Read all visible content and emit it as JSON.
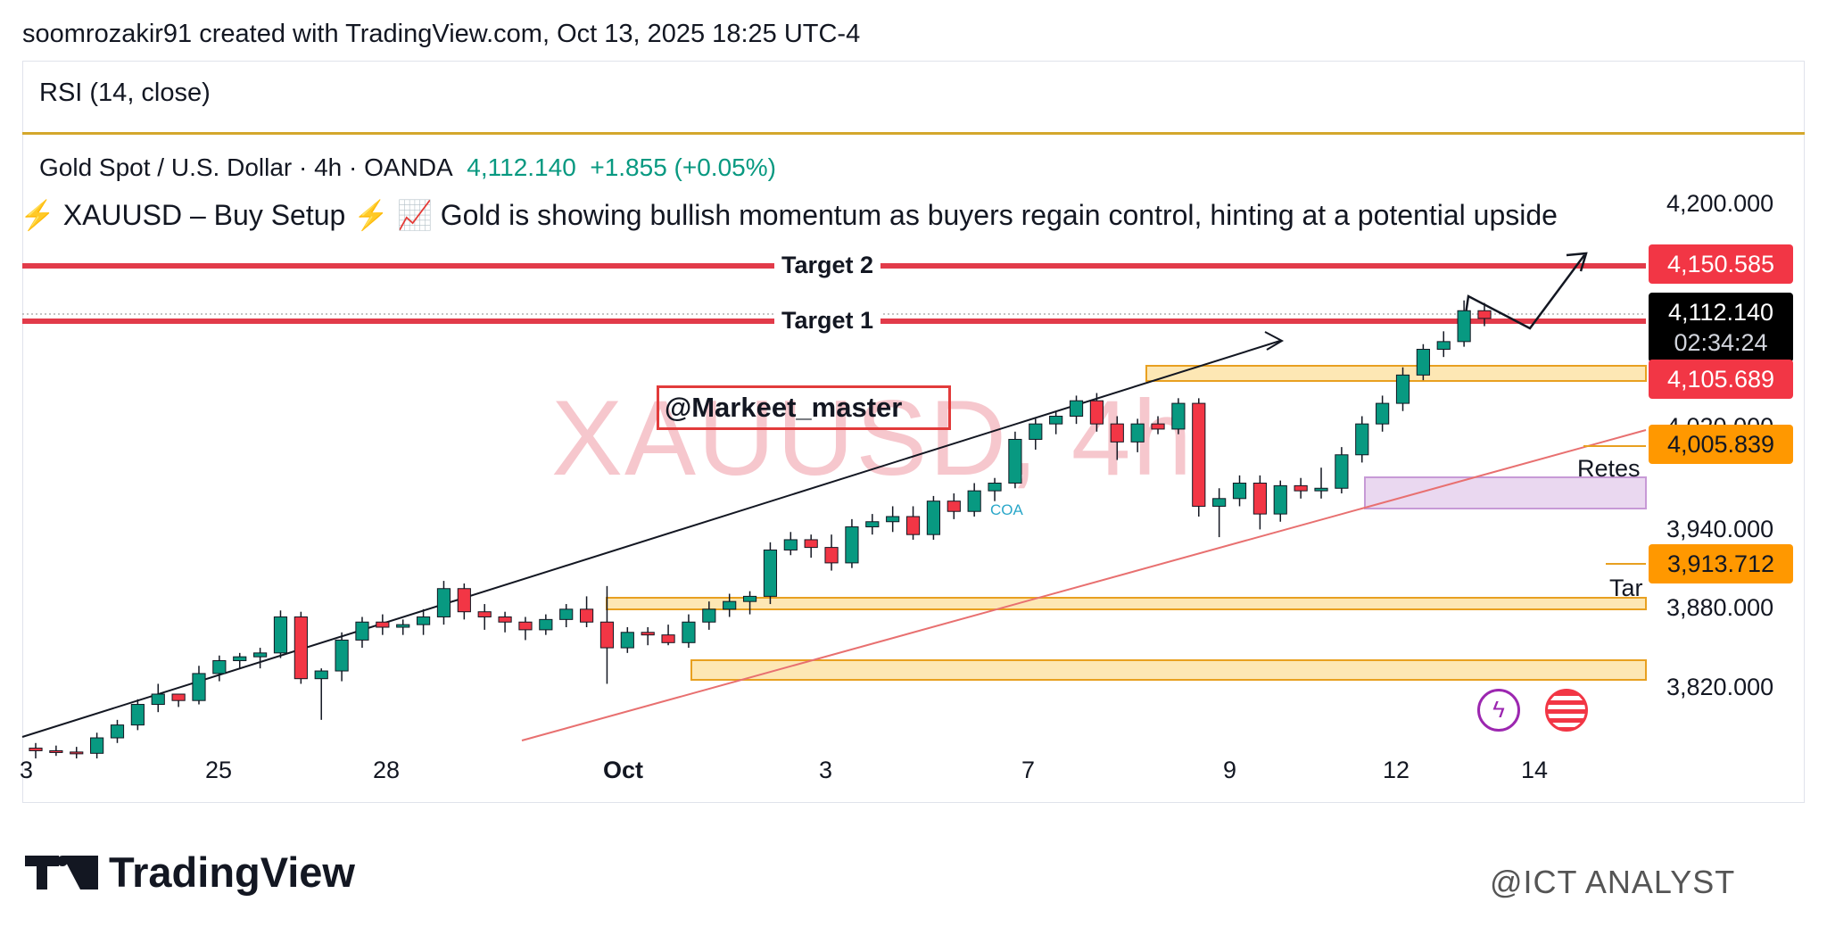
{
  "header": {
    "text": "soomrozakir91 created with TradingView.com, Oct 13, 2025 18:25 UTC-4"
  },
  "rsi": {
    "label": "RSI (14, close)"
  },
  "symbol": {
    "name": "Gold Spot / U.S. Dollar · 4h · OANDA",
    "price": "4,112.140",
    "change": "+1.855 (+0.05%)"
  },
  "idea": {
    "bolt": "⚡",
    "text": " XAUUSD – Buy Setup ",
    "bolt2": "⚡",
    "chart_emoji": "📈",
    "text2": " Gold is showing bullish momentum as buyers regain control, hinting at a potential upside"
  },
  "annotations": {
    "target2": "Target 2",
    "target1": "Target 1",
    "handle": "@Markeet_master",
    "watermark": "XAUUSD, 4h",
    "retest": "Retes",
    "tar": "Tar",
    "coa": "COA"
  },
  "price_axis": {
    "labels": [
      "4,200.000",
      "4,020.000",
      "3,940.000",
      "3,880.000",
      "3,820.000"
    ],
    "tags": {
      "target2": "4,150.585",
      "current_price": "4,112.140",
      "countdown": "02:34:24",
      "target1": "4,105.689",
      "level_a": "4,005.839",
      "level_b": "3,913.712"
    }
  },
  "date_axis": [
    "3",
    "25",
    "28",
    "Oct",
    "3",
    "7",
    "9",
    "12",
    "14"
  ],
  "footer": {
    "logo": "TradingView",
    "credit": "@ICT ANALYST"
  },
  "colors": {
    "up": "#089981",
    "down": "#f23645",
    "target_line": "#e23b4a",
    "zone_fill": "#fde7b4",
    "zone_stroke": "#e8a020",
    "retest_fill": "#ead8f0",
    "trendline": "#e87070"
  },
  "chart_data": {
    "type": "candlestick",
    "symbol": "XAUUSD",
    "timeframe": "4h",
    "y_axis_ticks": [
      4200,
      4020,
      3940,
      3880,
      3820
    ],
    "levels": {
      "target2": 4150.585,
      "target1": 4105.689,
      "current": 4112.14,
      "level_a": 4005.839,
      "level_b": 3913.712
    },
    "x_tick_labels": [
      "3",
      "25",
      "28",
      "Oct",
      "3",
      "7",
      "9",
      "12",
      "14"
    ],
    "candles": [
      [
        3778,
        3782,
        3770,
        3776
      ],
      [
        3776,
        3780,
        3772,
        3775
      ],
      [
        3775,
        3779,
        3770,
        3774
      ],
      [
        3774,
        3790,
        3770,
        3786
      ],
      [
        3786,
        3800,
        3782,
        3796
      ],
      [
        3796,
        3816,
        3792,
        3812
      ],
      [
        3812,
        3828,
        3806,
        3820
      ],
      [
        3820,
        3818,
        3810,
        3815
      ],
      [
        3815,
        3842,
        3812,
        3836
      ],
      [
        3836,
        3850,
        3830,
        3846
      ],
      [
        3846,
        3852,
        3840,
        3849
      ],
      [
        3849,
        3856,
        3840,
        3852
      ],
      [
        3852,
        3885,
        3848,
        3880
      ],
      [
        3880,
        3884,
        3828,
        3832
      ],
      [
        3832,
        3840,
        3800,
        3838
      ],
      [
        3838,
        3868,
        3830,
        3862
      ],
      [
        3862,
        3880,
        3856,
        3876
      ],
      [
        3876,
        3882,
        3866,
        3872
      ],
      [
        3872,
        3878,
        3866,
        3874
      ],
      [
        3874,
        3886,
        3866,
        3880
      ],
      [
        3880,
        3908,
        3874,
        3902
      ],
      [
        3902,
        3906,
        3878,
        3884
      ],
      [
        3884,
        3890,
        3870,
        3880
      ],
      [
        3880,
        3884,
        3868,
        3876
      ],
      [
        3876,
        3880,
        3862,
        3870
      ],
      [
        3870,
        3882,
        3866,
        3878
      ],
      [
        3878,
        3890,
        3872,
        3886
      ],
      [
        3886,
        3896,
        3872,
        3876
      ],
      [
        3876,
        3904,
        3828,
        3856
      ],
      [
        3856,
        3872,
        3852,
        3868
      ],
      [
        3868,
        3872,
        3858,
        3866
      ],
      [
        3866,
        3874,
        3858,
        3860
      ],
      [
        3860,
        3882,
        3856,
        3876
      ],
      [
        3876,
        3892,
        3870,
        3886
      ],
      [
        3886,
        3898,
        3880,
        3892
      ],
      [
        3892,
        3900,
        3882,
        3896
      ],
      [
        3896,
        3938,
        3890,
        3932
      ],
      [
        3932,
        3946,
        3928,
        3940
      ],
      [
        3940,
        3944,
        3926,
        3934
      ],
      [
        3934,
        3944,
        3916,
        3922
      ],
      [
        3922,
        3956,
        3918,
        3950
      ],
      [
        3950,
        3960,
        3944,
        3954
      ],
      [
        3954,
        3966,
        3946,
        3958
      ],
      [
        3958,
        3966,
        3940,
        3944
      ],
      [
        3944,
        3974,
        3940,
        3970
      ],
      [
        3970,
        3976,
        3956,
        3962
      ],
      [
        3962,
        3984,
        3958,
        3978
      ],
      [
        3978,
        3988,
        3970,
        3984
      ],
      [
        3984,
        4024,
        3980,
        4018
      ],
      [
        4018,
        4034,
        4010,
        4030
      ],
      [
        4030,
        4040,
        4022,
        4036
      ],
      [
        4036,
        4052,
        4030,
        4048
      ],
      [
        4048,
        4054,
        4024,
        4030
      ],
      [
        4030,
        4036,
        4002,
        4016
      ],
      [
        4016,
        4034,
        4008,
        4030
      ],
      [
        4030,
        4036,
        4022,
        4026
      ],
      [
        4026,
        4050,
        4022,
        4046
      ],
      [
        4046,
        4050,
        3958,
        3966
      ],
      [
        3966,
        3980,
        3942,
        3972
      ],
      [
        3972,
        3990,
        3966,
        3984
      ],
      [
        3984,
        3990,
        3948,
        3960
      ],
      [
        3960,
        3986,
        3954,
        3982
      ],
      [
        3982,
        3988,
        3972,
        3978
      ],
      [
        3978,
        3996,
        3972,
        3980
      ],
      [
        3980,
        4012,
        3976,
        4006
      ],
      [
        4006,
        4036,
        4000,
        4030
      ],
      [
        4030,
        4052,
        4024,
        4046
      ],
      [
        4046,
        4074,
        4040,
        4068
      ],
      [
        4068,
        4092,
        4064,
        4088
      ],
      [
        4088,
        4102,
        4082,
        4094
      ],
      [
        4094,
        4126,
        4090,
        4118
      ],
      [
        4118,
        4124,
        4106,
        4112
      ]
    ]
  }
}
